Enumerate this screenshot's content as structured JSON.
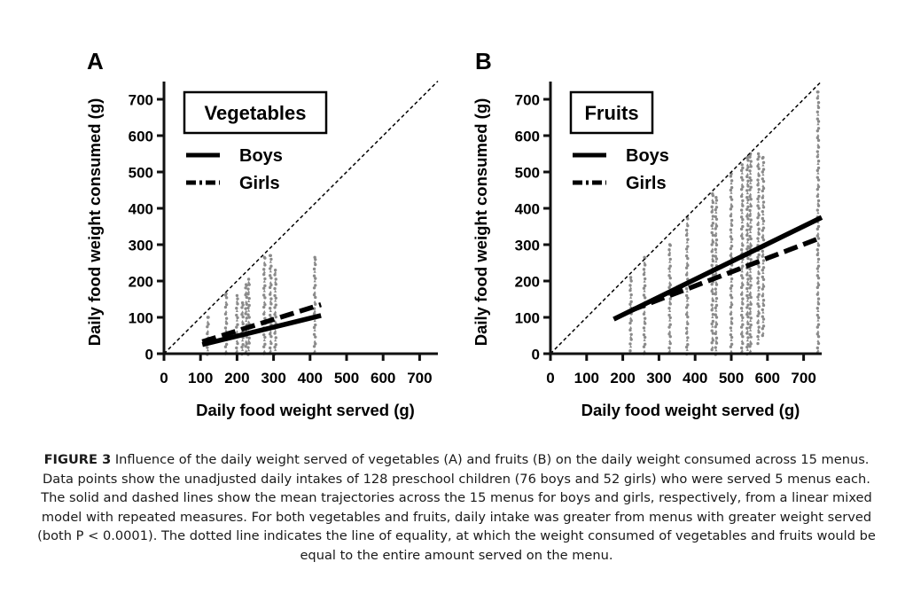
{
  "chart_data": [
    {
      "type": "scatter",
      "panel_label": "A",
      "title": "Vegetables",
      "xlabel": "Daily food weight served (g)",
      "ylabel": "Daily food weight consumed (g)",
      "xlim": [
        0,
        750
      ],
      "ylim": [
        0,
        750
      ],
      "xticks": [
        0,
        100,
        200,
        300,
        400,
        500,
        600,
        700
      ],
      "yticks": [
        0,
        100,
        200,
        300,
        400,
        500,
        600,
        700
      ],
      "grid": false,
      "legend_position": "top-left",
      "legend": [
        {
          "name": "Boys",
          "style": "solid"
        },
        {
          "name": "Girls",
          "style": "dashed"
        }
      ],
      "equality_line": {
        "from": [
          0,
          0
        ],
        "to": [
          750,
          750
        ],
        "style": "dotted"
      },
      "series": [
        {
          "name": "Boys",
          "style": "solid",
          "x": [
            105,
            430
          ],
          "y": [
            25,
            105
          ]
        },
        {
          "name": "Girls",
          "style": "dashed",
          "x": [
            105,
            430
          ],
          "y": [
            33,
            135
          ]
        }
      ],
      "scatter_columns": [
        {
          "served": 120,
          "consumed_min": 0,
          "consumed_max": 100
        },
        {
          "served": 170,
          "consumed_min": 0,
          "consumed_max": 165
        },
        {
          "served": 200,
          "consumed_min": 0,
          "consumed_max": 160
        },
        {
          "served": 215,
          "consumed_min": 0,
          "consumed_max": 140
        },
        {
          "served": 225,
          "consumed_min": 0,
          "consumed_max": 190
        },
        {
          "served": 232,
          "consumed_min": 0,
          "consumed_max": 205
        },
        {
          "served": 275,
          "consumed_min": 0,
          "consumed_max": 265
        },
        {
          "served": 292,
          "consumed_min": 0,
          "consumed_max": 270
        },
        {
          "served": 305,
          "consumed_min": 0,
          "consumed_max": 230
        },
        {
          "served": 413,
          "consumed_min": 0,
          "consumed_max": 265
        }
      ]
    },
    {
      "type": "scatter",
      "panel_label": "B",
      "title": "Fruits",
      "xlabel": "Daily food weight served (g)",
      "ylabel": "Daily food weight consumed (g)",
      "xlim": [
        0,
        750
      ],
      "ylim": [
        0,
        750
      ],
      "xticks": [
        0,
        100,
        200,
        300,
        400,
        500,
        600,
        700
      ],
      "yticks": [
        0,
        100,
        200,
        300,
        400,
        500,
        600,
        700
      ],
      "grid": false,
      "legend_position": "top-left",
      "legend": [
        {
          "name": "Boys",
          "style": "solid"
        },
        {
          "name": "Girls",
          "style": "dashed"
        }
      ],
      "equality_line": {
        "from": [
          0,
          0
        ],
        "to": [
          750,
          750
        ],
        "style": "dotted"
      },
      "series": [
        {
          "name": "Boys",
          "style": "solid",
          "x": [
            175,
            750
          ],
          "y": [
            95,
            375
          ]
        },
        {
          "name": "Girls",
          "style": "dashed",
          "x": [
            225,
            750
          ],
          "y": [
            120,
            320
          ]
        }
      ],
      "scatter_columns": [
        {
          "served": 222,
          "consumed_min": 10,
          "consumed_max": 210
        },
        {
          "served": 260,
          "consumed_min": 0,
          "consumed_max": 265
        },
        {
          "served": 330,
          "consumed_min": 0,
          "consumed_max": 300
        },
        {
          "served": 378,
          "consumed_min": 0,
          "consumed_max": 375
        },
        {
          "served": 448,
          "consumed_min": 10,
          "consumed_max": 440
        },
        {
          "served": 458,
          "consumed_min": 0,
          "consumed_max": 430
        },
        {
          "served": 500,
          "consumed_min": 0,
          "consumed_max": 495
        },
        {
          "served": 530,
          "consumed_min": 0,
          "consumed_max": 520
        },
        {
          "served": 545,
          "consumed_min": 0,
          "consumed_max": 540
        },
        {
          "served": 553,
          "consumed_min": 0,
          "consumed_max": 550
        },
        {
          "served": 575,
          "consumed_min": 30,
          "consumed_max": 550
        },
        {
          "served": 588,
          "consumed_min": 50,
          "consumed_max": 540
        },
        {
          "served": 740,
          "consumed_min": 0,
          "consumed_max": 720
        }
      ]
    }
  ],
  "caption": {
    "label": "FIGURE 3",
    "text": " Influence of the daily weight served of vegetables (A) and fruits (B) on the daily weight consumed across 15 menus. Data points show the unadjusted daily intakes of 128 preschool children (76 boys and 52 girls) who were served 5 menus each. The solid and dashed lines show the mean trajectories across the 15 menus for boys and girls, respectively, from a linear mixed model with repeated measures. For both vegetables and fruits, daily intake was greater from menus with greater weight served (both P < 0.0001). The dotted line indicates the line of equality, at which the weight consumed of vegetables and fruits would be equal to the entire amount served on the menu."
  },
  "colors": {
    "axis": "#111111",
    "scatter": "#8a8a8a",
    "line": "#000000"
  }
}
